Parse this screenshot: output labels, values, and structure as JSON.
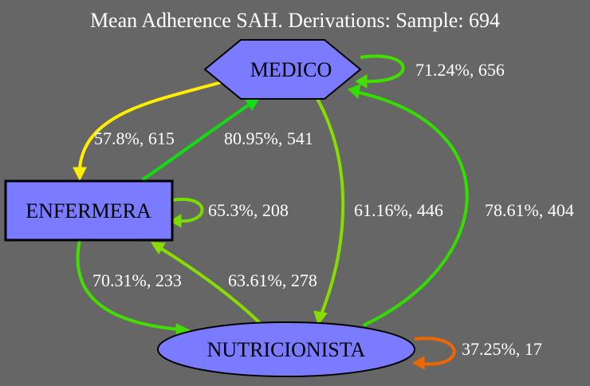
{
  "title": "Mean Adherence SAH. Derivations: Sample: 694",
  "colors": {
    "background": "#666666",
    "node_fill": "#7b7bff",
    "node_stroke": "#000000"
  },
  "nodes": {
    "medico": {
      "label": "MEDICO",
      "shape": "hexagon"
    },
    "enfermera": {
      "label": "ENFERMERA",
      "shape": "rectangle"
    },
    "nutricionista": {
      "label": "NUTRICIONISTA",
      "shape": "ellipse"
    }
  },
  "edges": {
    "medico_self": {
      "from": "MEDICO",
      "to": "MEDICO",
      "label": "71.24%, 656",
      "color": "#44dd00"
    },
    "medico_enfermera": {
      "from": "MEDICO",
      "to": "ENFERMERA",
      "label": "57.8%, 615",
      "color": "#ffee00"
    },
    "enfermera_medico": {
      "from": "ENFERMERA",
      "to": "MEDICO",
      "label": "80.95%, 541",
      "color": "#11dd11"
    },
    "enfermera_self": {
      "from": "ENFERMERA",
      "to": "ENFERMERA",
      "label": "65.3%, 208",
      "color": "#77dd00"
    },
    "medico_nutricionista": {
      "from": "MEDICO",
      "to": "NUTRICIONISTA",
      "label": "61.16%, 446",
      "color": "#88dd00"
    },
    "nutricionista_medico": {
      "from": "NUTRICIONISTA",
      "to": "MEDICO",
      "label": "78.61%, 404",
      "color": "#33dd00"
    },
    "enfermera_nutricionista": {
      "from": "ENFERMERA",
      "to": "NUTRICIONISTA",
      "label": "70.31%, 233",
      "color": "#44dd00"
    },
    "nutricionista_enfermera": {
      "from": "NUTRICIONISTA",
      "to": "ENFERMERA",
      "label": "63.61%, 278",
      "color": "#88dd00"
    },
    "nutricionista_self": {
      "from": "NUTRICIONISTA",
      "to": "NUTRICIONISTA",
      "label": "37.25%, 17",
      "color": "#ee6600"
    }
  }
}
